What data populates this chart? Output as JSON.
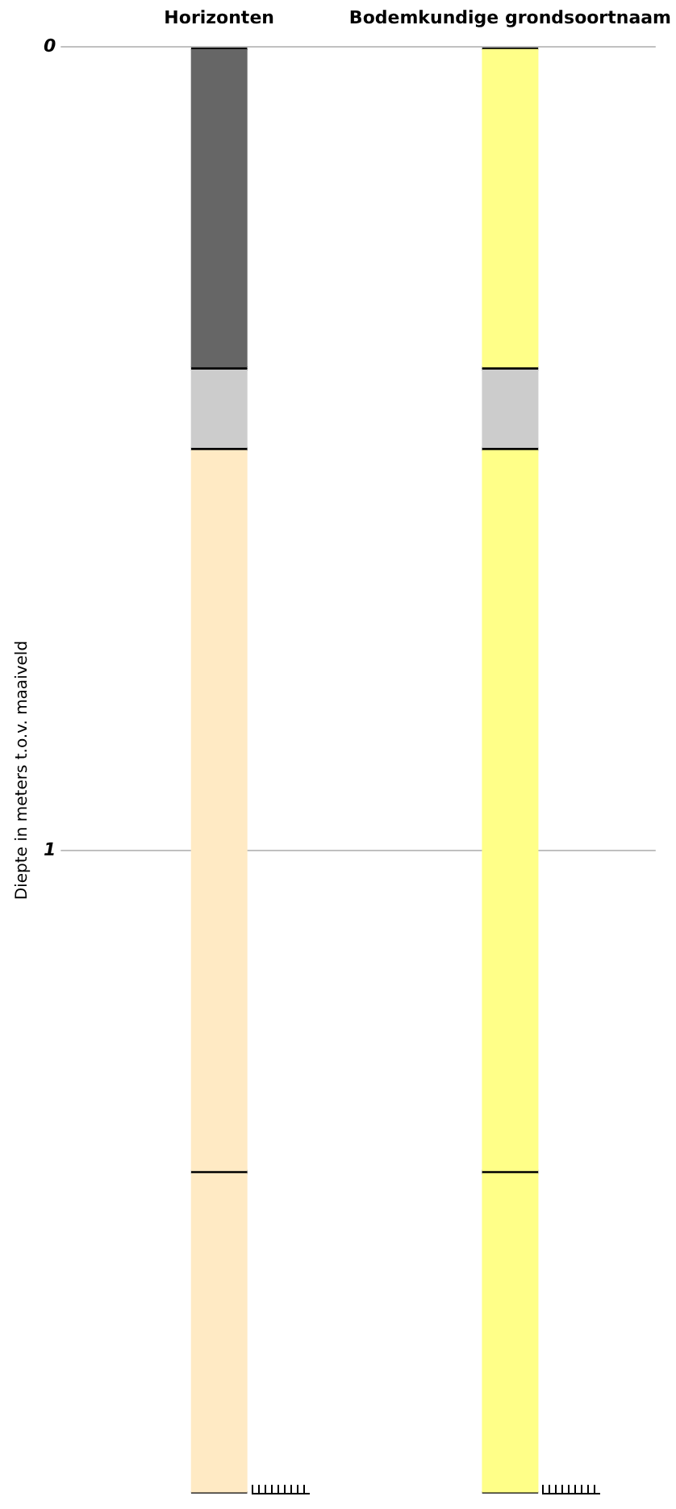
{
  "chart_data": {
    "type": "bar",
    "stacked": true,
    "ylabel": "Diepte in meters t.o.v. maaiveld",
    "categories": [
      "Horizonten",
      "Bodemkundige grondsoortnaam"
    ],
    "series": [
      {
        "colors": [
          "#666666",
          "#ffff88"
        ],
        "values": [
          0.4,
          0.4
        ]
      },
      {
        "colors": [
          "#cccccc",
          "#cccccc"
        ],
        "values": [
          0.1,
          0.1
        ]
      },
      {
        "colors": [
          "#ffeac4",
          "#ffff88"
        ],
        "values": [
          0.9,
          0.9
        ]
      },
      {
        "colors": [
          "#ffeac4",
          "#ffff88"
        ],
        "values": [
          0.4,
          0.4
        ]
      }
    ],
    "ylim": [
      1.8,
      0
    ],
    "yticks": [
      0,
      1
    ],
    "grid": "y",
    "legend": false
  }
}
